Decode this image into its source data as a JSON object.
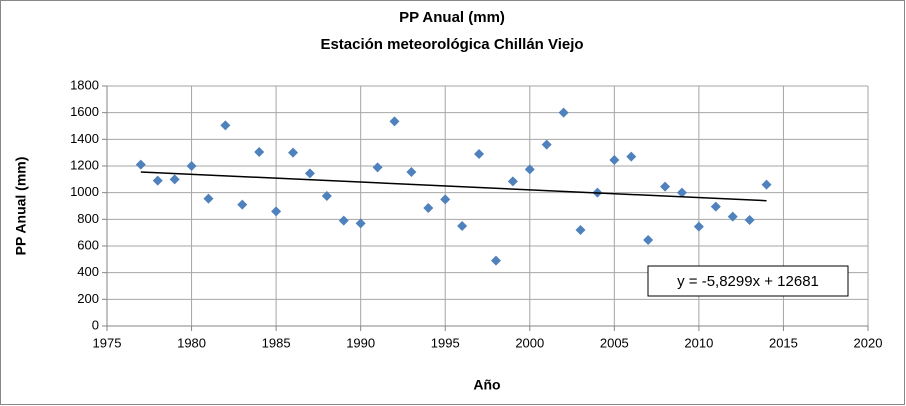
{
  "chart_data": {
    "type": "scatter",
    "title": "PP Anual (mm)",
    "subtitle": "Estación meteorológica Chillán Viejo",
    "x_label": "Año",
    "y_label": "PP Anual (mm)",
    "x": [
      1977,
      1978,
      1979,
      1980,
      1981,
      1982,
      1983,
      1984,
      1985,
      1986,
      1987,
      1988,
      1989,
      1990,
      1991,
      1992,
      1993,
      1994,
      1995,
      1996,
      1997,
      1998,
      1999,
      2000,
      2001,
      2002,
      2003,
      2004,
      2005,
      2006,
      2007,
      2008,
      2009,
      2010,
      2011,
      2012,
      2013,
      2014
    ],
    "values": [
      1210,
      1090,
      1100,
      1200,
      955,
      1505,
      910,
      1305,
      860,
      1300,
      1145,
      975,
      790,
      770,
      1190,
      1535,
      1155,
      885,
      950,
      750,
      1290,
      490,
      1085,
      1175,
      1360,
      1600,
      720,
      1000,
      1245,
      1270,
      645,
      1045,
      1000,
      745,
      895,
      820,
      795,
      1060
    ],
    "color": "#4f81bd",
    "xlim": [
      1975,
      2020
    ],
    "xticks": [
      1975,
      1980,
      1985,
      1990,
      1995,
      2000,
      2005,
      2010,
      2015,
      2020
    ],
    "ylim": [
      0,
      1800
    ],
    "yticks": [
      0,
      200,
      400,
      600,
      800,
      1000,
      1200,
      1400,
      1600,
      1800
    ],
    "grid": true,
    "trendline": {
      "label": "y = -5,8299x + 12681",
      "slope": -5.8299,
      "intercept": 12681,
      "color": "#000000"
    }
  }
}
